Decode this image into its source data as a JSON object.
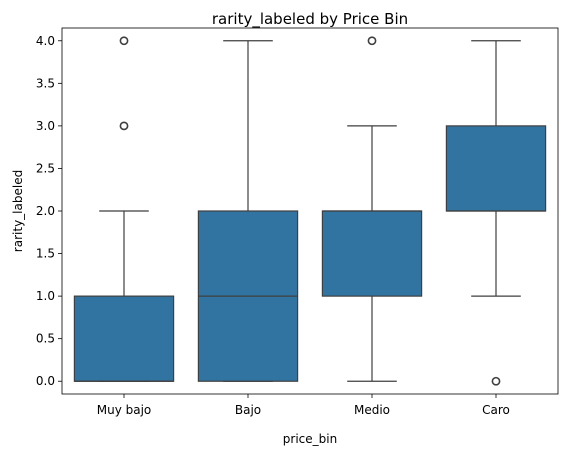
{
  "chart_data": {
    "type": "box",
    "title": "rarity_labeled by Price Bin",
    "xlabel": "price_bin",
    "ylabel": "rarity_labeled",
    "ylim": [
      -0.15,
      4.15
    ],
    "yticks": [
      "0.0",
      "0.5",
      "1.0",
      "1.5",
      "2.0",
      "2.5",
      "3.0",
      "3.5",
      "4.0"
    ],
    "grid": false,
    "color": "#3274a1",
    "edge_color": "#3f3f3f",
    "categories": [
      "Muy bajo",
      "Bajo",
      "Medio",
      "Caro"
    ],
    "boxes": [
      {
        "category": "Muy bajo",
        "whisker_low": 0,
        "q1": 0,
        "median": 0,
        "q3": 1,
        "whisker_high": 2,
        "outliers": [
          3,
          4
        ]
      },
      {
        "category": "Bajo",
        "whisker_low": 0,
        "q1": 0,
        "median": 1,
        "q3": 2,
        "whisker_high": 4,
        "outliers": []
      },
      {
        "category": "Medio",
        "whisker_low": 0,
        "q1": 1,
        "median": 2,
        "q3": 2,
        "whisker_high": 3,
        "outliers": [
          4
        ]
      },
      {
        "category": "Caro",
        "whisker_low": 1,
        "q1": 2,
        "median": 2,
        "q3": 3,
        "whisker_high": 4,
        "outliers": [
          0
        ]
      }
    ]
  }
}
